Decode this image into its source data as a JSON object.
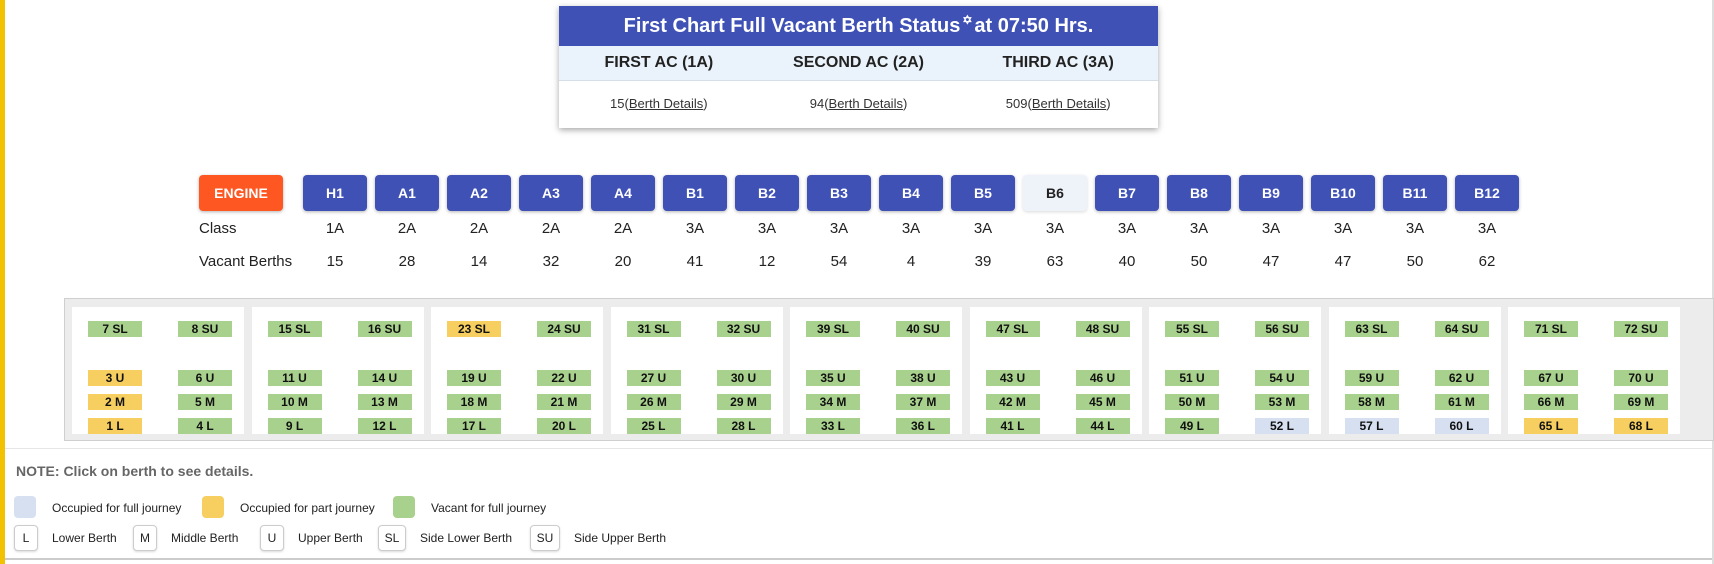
{
  "summary": {
    "title_prefix": "First Chart Full Vacant Berth Status",
    "star": "✡",
    "title_suffix": "at 07:50 Hrs.",
    "columns": [
      {
        "label": "FIRST AC (1A)",
        "count": "15",
        "link": "Berth Details"
      },
      {
        "label": "SECOND AC (2A)",
        "count": "94",
        "link": "Berth Details"
      },
      {
        "label": "THIRD AC (3A)",
        "count": "509",
        "link": "Berth Details"
      }
    ]
  },
  "coaches": {
    "engine_label": "ENGINE",
    "class_label": "Class",
    "vacant_label": "Vacant Berths",
    "selected": "B6",
    "list": [
      {
        "name": "H1",
        "cls": "1A",
        "vacant": "15"
      },
      {
        "name": "A1",
        "cls": "2A",
        "vacant": "28"
      },
      {
        "name": "A2",
        "cls": "2A",
        "vacant": "14"
      },
      {
        "name": "A3",
        "cls": "2A",
        "vacant": "32"
      },
      {
        "name": "A4",
        "cls": "2A",
        "vacant": "20"
      },
      {
        "name": "B1",
        "cls": "3A",
        "vacant": "41"
      },
      {
        "name": "B2",
        "cls": "3A",
        "vacant": "12"
      },
      {
        "name": "B3",
        "cls": "3A",
        "vacant": "54"
      },
      {
        "name": "B4",
        "cls": "3A",
        "vacant": "4"
      },
      {
        "name": "B5",
        "cls": "3A",
        "vacant": "39"
      },
      {
        "name": "B6",
        "cls": "3A",
        "vacant": "63"
      },
      {
        "name": "B7",
        "cls": "3A",
        "vacant": "40"
      },
      {
        "name": "B8",
        "cls": "3A",
        "vacant": "50"
      },
      {
        "name": "B9",
        "cls": "3A",
        "vacant": "47"
      },
      {
        "name": "B10",
        "cls": "3A",
        "vacant": "47"
      },
      {
        "name": "B11",
        "cls": "3A",
        "vacant": "50"
      },
      {
        "name": "B12",
        "cls": "3A",
        "vacant": "62"
      }
    ]
  },
  "berth_status_colors": {
    "vacant": "#a9d18e",
    "partial": "#f7cf60",
    "full": "#d6e0f0"
  },
  "compartments": [
    {
      "sl": "7 SL",
      "sl_s": "vacant",
      "su": "8 SU",
      "su_s": "vacant",
      "left": [
        [
          "3 U",
          "partial"
        ],
        [
          "2 M",
          "partial"
        ],
        [
          "1 L",
          "partial"
        ]
      ],
      "right": [
        [
          "6 U",
          "vacant"
        ],
        [
          "5 M",
          "vacant"
        ],
        [
          "4 L",
          "vacant"
        ]
      ]
    },
    {
      "sl": "15 SL",
      "sl_s": "vacant",
      "su": "16 SU",
      "su_s": "vacant",
      "left": [
        [
          "11 U",
          "vacant"
        ],
        [
          "10 M",
          "vacant"
        ],
        [
          "9 L",
          "vacant"
        ]
      ],
      "right": [
        [
          "14 U",
          "vacant"
        ],
        [
          "13 M",
          "vacant"
        ],
        [
          "12 L",
          "vacant"
        ]
      ]
    },
    {
      "sl": "23 SL",
      "sl_s": "partial",
      "su": "24 SU",
      "su_s": "vacant",
      "left": [
        [
          "19 U",
          "vacant"
        ],
        [
          "18 M",
          "vacant"
        ],
        [
          "17 L",
          "vacant"
        ]
      ],
      "right": [
        [
          "22 U",
          "vacant"
        ],
        [
          "21 M",
          "vacant"
        ],
        [
          "20 L",
          "vacant"
        ]
      ]
    },
    {
      "sl": "31 SL",
      "sl_s": "vacant",
      "su": "32 SU",
      "su_s": "vacant",
      "left": [
        [
          "27 U",
          "vacant"
        ],
        [
          "26 M",
          "vacant"
        ],
        [
          "25 L",
          "vacant"
        ]
      ],
      "right": [
        [
          "30 U",
          "vacant"
        ],
        [
          "29 M",
          "vacant"
        ],
        [
          "28 L",
          "vacant"
        ]
      ]
    },
    {
      "sl": "39 SL",
      "sl_s": "vacant",
      "su": "40 SU",
      "su_s": "vacant",
      "left": [
        [
          "35 U",
          "vacant"
        ],
        [
          "34 M",
          "vacant"
        ],
        [
          "33 L",
          "vacant"
        ]
      ],
      "right": [
        [
          "38 U",
          "vacant"
        ],
        [
          "37 M",
          "vacant"
        ],
        [
          "36 L",
          "vacant"
        ]
      ]
    },
    {
      "sl": "47 SL",
      "sl_s": "vacant",
      "su": "48 SU",
      "su_s": "vacant",
      "left": [
        [
          "43 U",
          "vacant"
        ],
        [
          "42 M",
          "vacant"
        ],
        [
          "41 L",
          "vacant"
        ]
      ],
      "right": [
        [
          "46 U",
          "vacant"
        ],
        [
          "45 M",
          "vacant"
        ],
        [
          "44 L",
          "vacant"
        ]
      ]
    },
    {
      "sl": "55 SL",
      "sl_s": "vacant",
      "su": "56 SU",
      "su_s": "vacant",
      "left": [
        [
          "51 U",
          "vacant"
        ],
        [
          "50 M",
          "vacant"
        ],
        [
          "49 L",
          "vacant"
        ]
      ],
      "right": [
        [
          "54 U",
          "vacant"
        ],
        [
          "53 M",
          "vacant"
        ],
        [
          "52 L",
          "full"
        ]
      ]
    },
    {
      "sl": "63 SL",
      "sl_s": "vacant",
      "su": "64 SU",
      "su_s": "vacant",
      "left": [
        [
          "59 U",
          "vacant"
        ],
        [
          "58 M",
          "vacant"
        ],
        [
          "57 L",
          "full"
        ]
      ],
      "right": [
        [
          "62 U",
          "vacant"
        ],
        [
          "61 M",
          "vacant"
        ],
        [
          "60 L",
          "full"
        ]
      ]
    },
    {
      "sl": "71 SL",
      "sl_s": "vacant",
      "su": "72 SU",
      "su_s": "vacant",
      "left": [
        [
          "67 U",
          "vacant"
        ],
        [
          "66 M",
          "vacant"
        ],
        [
          "65 L",
          "partial"
        ]
      ],
      "right": [
        [
          "70 U",
          "vacant"
        ],
        [
          "69 M",
          "vacant"
        ],
        [
          "68 L",
          "partial"
        ]
      ]
    }
  ],
  "note": "NOTE: Click on berth to see details.",
  "legend": {
    "status": [
      {
        "label": "Occupied for full journey",
        "color": "#d6e0f0"
      },
      {
        "label": "Occupied for part journey",
        "color": "#f7cf60"
      },
      {
        "label": "Vacant for full journey",
        "color": "#a9d18e"
      }
    ],
    "types": [
      {
        "code": "L",
        "label": "Lower Berth"
      },
      {
        "code": "M",
        "label": "Middle Berth"
      },
      {
        "code": "U",
        "label": "Upper Berth"
      },
      {
        "code": "SL",
        "label": "Side Lower Berth"
      },
      {
        "code": "SU",
        "label": "Side Upper Berth"
      }
    ]
  }
}
